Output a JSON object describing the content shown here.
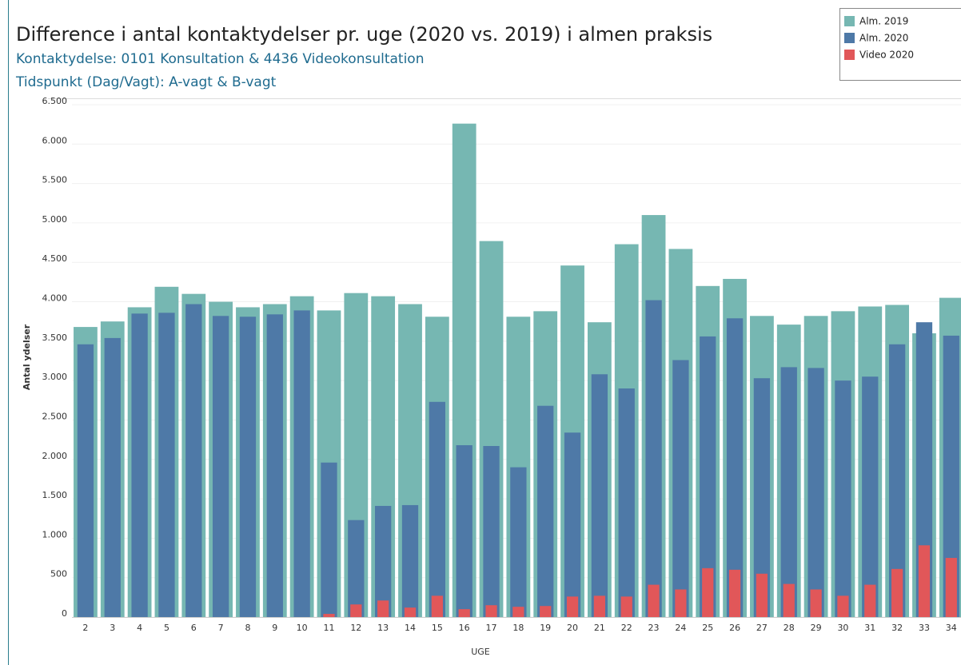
{
  "chart_data": {
    "type": "bar",
    "title": "Difference i antal kontaktydelser pr. uge (2020 vs. 2019) i almen praksis",
    "subtitle": [
      "Kontaktydelse: 0101 Konsultation & 4436 Videokonsultation",
      "Tidspunkt (Dag/Vagt): A-vagt & B-vagt"
    ],
    "x_label": "UGE",
    "y_label": "Antal ydelser",
    "categories": [
      "2",
      "3",
      "4",
      "5",
      "6",
      "7",
      "8",
      "9",
      "10",
      "11",
      "12",
      "13",
      "14",
      "15",
      "16",
      "17",
      "18",
      "19",
      "20",
      "21",
      "22",
      "23",
      "24",
      "25",
      "26",
      "27",
      "28",
      "29",
      "30",
      "31",
      "32",
      "33",
      "34"
    ],
    "series": [
      {
        "name": "Alm. 2019",
        "color": "#76b7b2",
        "values": [
          3680,
          3750,
          3930,
          4190,
          4100,
          4000,
          3930,
          3970,
          4070,
          3890,
          4110,
          4070,
          3970,
          3810,
          6260,
          4770,
          3810,
          3880,
          4460,
          3740,
          4730,
          5100,
          4670,
          4200,
          4290,
          3820,
          3710,
          3820,
          3880,
          3940,
          3960,
          3600,
          4050
        ]
      },
      {
        "name": "Alm. 2020",
        "color": "#4e79a7",
        "values": [
          3460,
          3540,
          3850,
          3860,
          3970,
          3820,
          3810,
          3840,
          3890,
          1960,
          1230,
          1410,
          1420,
          2730,
          2180,
          2170,
          1900,
          2680,
          2340,
          3080,
          2900,
          4020,
          3260,
          3560,
          3790,
          3030,
          3170,
          3160,
          3000,
          3050,
          3460,
          3740,
          3570
        ]
      },
      {
        "name": "Video 2020",
        "color": "#e15759",
        "values": [
          null,
          null,
          null,
          null,
          null,
          null,
          null,
          null,
          null,
          40,
          160,
          210,
          120,
          270,
          100,
          150,
          130,
          140,
          260,
          270,
          260,
          410,
          350,
          620,
          600,
          550,
          420,
          350,
          270,
          410,
          610,
          910,
          750
        ]
      }
    ],
    "ylim": [
      0,
      6500
    ],
    "yticks": [
      0,
      500,
      {
        "value": 1000,
        "label": "1.000"
      },
      {
        "value": 1500,
        "label": "1.500"
      },
      {
        "value": 2000,
        "label": "2.000"
      },
      {
        "value": 2500,
        "label": "2.500"
      },
      {
        "value": 3000,
        "label": "3.000"
      },
      {
        "value": 3500,
        "label": "3.500"
      },
      {
        "value": 4000,
        "label": "4.000"
      },
      {
        "value": 4500,
        "label": "4.500"
      },
      {
        "value": 5000,
        "label": "5.000"
      },
      {
        "value": 5500,
        "label": "5.500"
      },
      {
        "value": 6000,
        "label": "6.000"
      },
      {
        "value": 6500,
        "label": "6.500"
      }
    ],
    "grid": true
  }
}
